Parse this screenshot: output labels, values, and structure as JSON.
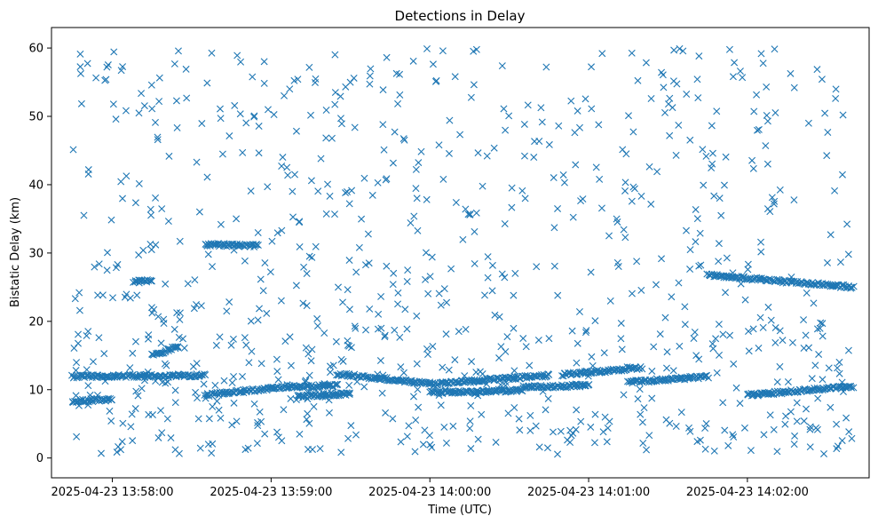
{
  "chart_data": {
    "type": "scatter",
    "title": "Detections in Delay",
    "xlabel": "Time (UTC)",
    "ylabel": "Bistatic Delay (km)",
    "marker": "x",
    "marker_color": "#1f77b4",
    "grid": false,
    "x_unit": "time (UTC)",
    "xlim": [
      "2025-04-23 13:57:37",
      "2025-04-23 14:02:46"
    ],
    "ylim": [
      -2.9,
      63.0
    ],
    "x_ticks": [
      "2025-04-23 13:58:00",
      "2025-04-23 13:59:00",
      "2025-04-23 14:00:00",
      "2025-04-23 14:01:00",
      "2025-04-23 14:02:00"
    ],
    "y_ticks": [
      0,
      10,
      20,
      30,
      40,
      50,
      60
    ],
    "tracks": [
      {
        "description": "dense near-constant track",
        "from": [
          "2025-04-23 13:57:45",
          11.9
        ],
        "to": [
          "2025-04-23 13:58:35",
          12.1
        ]
      },
      {
        "description": "dense rising track",
        "from": [
          "2025-04-23 13:57:45",
          8.3
        ],
        "to": [
          "2025-04-23 13:58:00",
          8.6
        ]
      },
      {
        "description": "dense track",
        "from": [
          "2025-04-23 13:58:35",
          9.2
        ],
        "to": [
          "2025-04-23 13:59:00",
          10.2
        ]
      },
      {
        "description": "dense track",
        "from": [
          "2025-04-23 13:59:00",
          10.3
        ],
        "to": [
          "2025-04-23 13:59:25",
          10.6
        ]
      },
      {
        "description": "dense descending track",
        "from": [
          "2025-04-23 13:59:25",
          12.3
        ],
        "to": [
          "2025-04-23 14:00:00",
          10.9
        ]
      },
      {
        "description": "dense track",
        "from": [
          "2025-04-23 13:59:10",
          9.0
        ],
        "to": [
          "2025-04-23 13:59:30",
          9.4
        ]
      },
      {
        "description": "dense rising track",
        "from": [
          "2025-04-23 14:00:00",
          10.8
        ],
        "to": [
          "2025-04-23 14:00:45",
          12.1
        ]
      },
      {
        "description": "dense track",
        "from": [
          "2025-04-23 14:00:00",
          9.6
        ],
        "to": [
          "2025-04-23 14:00:35",
          9.9
        ]
      },
      {
        "description": "dense track",
        "from": [
          "2025-04-23 14:00:50",
          12.2
        ],
        "to": [
          "2025-04-23 14:01:20",
          13.2
        ]
      },
      {
        "description": "dense track",
        "from": [
          "2025-04-23 14:00:35",
          10.4
        ],
        "to": [
          "2025-04-23 14:01:00",
          10.6
        ]
      },
      {
        "description": "dense track",
        "from": [
          "2025-04-23 14:01:15",
          11.1
        ],
        "to": [
          "2025-04-23 14:01:45",
          11.9
        ]
      },
      {
        "description": "dense descending track",
        "from": [
          "2025-04-23 14:01:45",
          26.8
        ],
        "to": [
          "2025-04-23 14:02:40",
          25.0
        ]
      },
      {
        "description": "dense rising track",
        "from": [
          "2025-04-23 14:02:00",
          9.2
        ],
        "to": [
          "2025-04-23 14:02:40",
          10.5
        ]
      },
      {
        "description": "short cluster",
        "from": [
          "2025-04-23 13:58:08",
          25.9
        ],
        "to": [
          "2025-04-23 13:58:15",
          25.9
        ]
      },
      {
        "description": "short cluster",
        "from": [
          "2025-04-23 13:58:35",
          31.2
        ],
        "to": [
          "2025-04-23 13:58:55",
          31.1
        ]
      },
      {
        "description": "short cluster",
        "from": [
          "2025-04-23 13:58:15",
          15.0
        ],
        "to": [
          "2025-04-23 13:58:25",
          16.3
        ]
      }
    ]
  }
}
